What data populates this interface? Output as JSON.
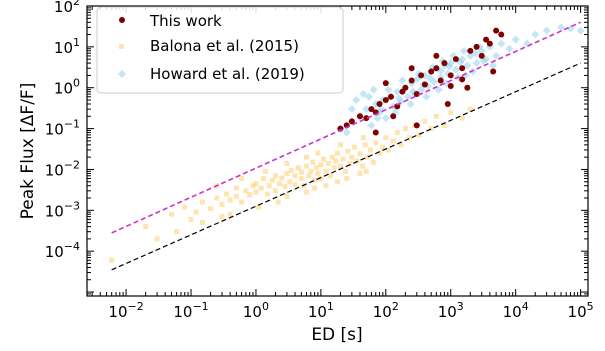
{
  "chart_data": {
    "type": "scatter",
    "xlabel": "ED [s]",
    "ylabel": "Peak Flux [ΔF/F]",
    "xscale": "log",
    "yscale": "log",
    "xlim": [
      0.0025,
      130000
    ],
    "ylim": [
      8e-06,
      100
    ],
    "x_ticks": [
      {
        "value": 0.01,
        "base": "10",
        "exp": "−2"
      },
      {
        "value": 0.1,
        "base": "10",
        "exp": "−1"
      },
      {
        "value": 1,
        "base": "10",
        "exp": "0"
      },
      {
        "value": 10,
        "base": "10",
        "exp": "1"
      },
      {
        "value": 100,
        "base": "10",
        "exp": "2"
      },
      {
        "value": 1000,
        "base": "10",
        "exp": "3"
      },
      {
        "value": 10000,
        "base": "10",
        "exp": "4"
      },
      {
        "value": 100000,
        "base": "10",
        "exp": "5"
      }
    ],
    "y_ticks": [
      {
        "value": 0.0001,
        "base": "10",
        "exp": "−4"
      },
      {
        "value": 0.001,
        "base": "10",
        "exp": "−3"
      },
      {
        "value": 0.01,
        "base": "10",
        "exp": "−2"
      },
      {
        "value": 0.1,
        "base": "10",
        "exp": "−1"
      },
      {
        "value": 1,
        "base": "10",
        "exp": "0"
      },
      {
        "value": 10,
        "base": "10",
        "exp": "1"
      },
      {
        "value": 100,
        "base": "10",
        "exp": "2"
      }
    ],
    "legend_position": "top-left",
    "series": [
      {
        "name": "Balona et al. (2015)",
        "marker": "square",
        "color": "#ffa500",
        "points": [
          [
            0.006,
            6e-05
          ],
          [
            0.02,
            0.0004
          ],
          [
            0.05,
            0.0008
          ],
          [
            0.08,
            0.0012
          ],
          [
            0.12,
            0.0009
          ],
          [
            0.15,
            0.0016
          ],
          [
            0.2,
            0.0011
          ],
          [
            0.25,
            0.002
          ],
          [
            0.3,
            0.0014
          ],
          [
            0.35,
            0.0025
          ],
          [
            0.4,
            0.0018
          ],
          [
            0.5,
            0.0022
          ],
          [
            0.5,
            0.0035
          ],
          [
            0.6,
            0.0016
          ],
          [
            0.7,
            0.003
          ],
          [
            0.8,
            0.0024
          ],
          [
            0.9,
            0.004
          ],
          [
            1,
            0.0028
          ],
          [
            1,
            0.0045
          ],
          [
            1.2,
            0.0035
          ],
          [
            1.3,
            0.006
          ],
          [
            1.5,
            0.0025
          ],
          [
            1.6,
            0.004
          ],
          [
            1.8,
            0.0055
          ],
          [
            2,
            0.003
          ],
          [
            2,
            0.007
          ],
          [
            2.3,
            0.0045
          ],
          [
            2.5,
            0.0062
          ],
          [
            2.8,
            0.0038
          ],
          [
            3,
            0.008
          ],
          [
            3.3,
            0.005
          ],
          [
            3.5,
            0.0095
          ],
          [
            4,
            0.0042
          ],
          [
            4,
            0.007
          ],
          [
            4.5,
            0.011
          ],
          [
            5,
            0.006
          ],
          [
            5,
            0.0085
          ],
          [
            5.5,
            0.004
          ],
          [
            6,
            0.012
          ],
          [
            6.5,
            0.007
          ],
          [
            7,
            0.009
          ],
          [
            7.5,
            0.015
          ],
          [
            8,
            0.0055
          ],
          [
            8.5,
            0.011
          ],
          [
            9,
            0.008
          ],
          [
            10,
            0.013
          ],
          [
            10,
            0.006
          ],
          [
            11,
            0.018
          ],
          [
            12,
            0.009
          ],
          [
            13,
            0.014
          ],
          [
            14,
            0.007
          ],
          [
            15,
            0.02
          ],
          [
            16,
            0.011
          ],
          [
            17,
            0.016
          ],
          [
            18,
            0.025
          ],
          [
            20,
            0.012
          ],
          [
            22,
            0.018
          ],
          [
            24,
            0.009
          ],
          [
            26,
            0.028
          ],
          [
            28,
            0.014
          ],
          [
            30,
            0.02
          ],
          [
            33,
            0.035
          ],
          [
            36,
            0.016
          ],
          [
            40,
            0.024
          ],
          [
            44,
            0.012
          ],
          [
            48,
            0.04
          ],
          [
            52,
            0.02
          ],
          [
            58,
            0.03
          ],
          [
            64,
            0.015
          ],
          [
            70,
            0.045
          ],
          [
            80,
            0.025
          ],
          [
            90,
            0.035
          ],
          [
            100,
            0.06
          ],
          [
            110,
            0.03
          ],
          [
            130,
            0.05
          ],
          [
            150,
            0.08
          ],
          [
            170,
            0.04
          ],
          [
            200,
            0.1
          ],
          [
            230,
            0.06
          ],
          [
            280,
            0.12
          ],
          [
            330,
            0.07
          ],
          [
            400,
            0.15
          ],
          [
            500,
            0.1
          ],
          [
            600,
            0.2
          ],
          [
            800,
            0.12
          ],
          [
            1000,
            0.25
          ],
          [
            1500,
            0.18
          ],
          [
            2000,
            0.3
          ],
          [
            3,
            0.0022
          ],
          [
            1.1,
            0.0012
          ],
          [
            0.4,
            0.0008
          ],
          [
            6,
            0.0028
          ],
          [
            12,
            0.004
          ],
          [
            25,
            0.006
          ],
          [
            50,
            0.009
          ],
          [
            0.1,
            0.0006
          ],
          [
            0.25,
            0.004
          ],
          [
            0.6,
            0.006
          ],
          [
            1.4,
            0.009
          ],
          [
            3,
            0.014
          ],
          [
            6,
            0.02
          ],
          [
            2.2,
            0.0016
          ],
          [
            8,
            0.0035
          ],
          [
            18,
            0.005
          ],
          [
            40,
            0.008
          ],
          [
            9,
            0.025
          ],
          [
            20,
            0.04
          ],
          [
            45,
            0.06
          ],
          [
            0.03,
            0.0002
          ],
          [
            0.06,
            0.0003
          ],
          [
            0.15,
            0.0005
          ],
          [
            0.3,
            0.0007
          ]
        ]
      },
      {
        "name": "Howard et al. (2019)",
        "marker": "diamond",
        "color": "#87ceeb",
        "points": [
          [
            20,
            0.1
          ],
          [
            30,
            0.15
          ],
          [
            40,
            0.2
          ],
          [
            25,
            0.08
          ],
          [
            50,
            0.3
          ],
          [
            60,
            0.12
          ],
          [
            70,
            0.4
          ],
          [
            80,
            0.25
          ],
          [
            90,
            0.5
          ],
          [
            100,
            0.18
          ],
          [
            120,
            0.6
          ],
          [
            130,
            0.35
          ],
          [
            150,
            0.8
          ],
          [
            170,
            0.45
          ],
          [
            200,
            1
          ],
          [
            220,
            0.6
          ],
          [
            250,
            1.3
          ],
          [
            280,
            0.7
          ],
          [
            300,
            1.6
          ],
          [
            350,
            0.9
          ],
          [
            400,
            2
          ],
          [
            450,
            1.1
          ],
          [
            500,
            2.5
          ],
          [
            550,
            1.4
          ],
          [
            600,
            3
          ],
          [
            700,
            1.8
          ],
          [
            800,
            3.5
          ],
          [
            900,
            2.2
          ],
          [
            1000,
            4
          ],
          [
            1200,
            2.8
          ],
          [
            1500,
            5
          ],
          [
            1800,
            3.5
          ],
          [
            2000,
            6
          ],
          [
            2500,
            4
          ],
          [
            3000,
            8
          ],
          [
            3500,
            5
          ],
          [
            4000,
            10
          ],
          [
            5000,
            6
          ],
          [
            6000,
            12
          ],
          [
            8000,
            9
          ],
          [
            10000,
            15
          ],
          [
            15000,
            12
          ],
          [
            20000,
            20
          ],
          [
            30000,
            25
          ],
          [
            50000,
            30
          ],
          [
            70000,
            28
          ],
          [
            100000,
            25
          ],
          [
            35,
            0.5
          ],
          [
            45,
            0.7
          ],
          [
            75,
            0.18
          ],
          [
            110,
            0.9
          ],
          [
            140,
            0.25
          ],
          [
            180,
            1.5
          ],
          [
            240,
            0.4
          ],
          [
            320,
            2.2
          ],
          [
            420,
            0.6
          ],
          [
            520,
            3.2
          ],
          [
            650,
            0.9
          ],
          [
            750,
            4.5
          ],
          [
            850,
            1.3
          ],
          [
            1100,
            6
          ],
          [
            1300,
            1.8
          ],
          [
            1600,
            8
          ],
          [
            2200,
            2.5
          ],
          [
            2800,
            10
          ],
          [
            4500,
            3.5
          ],
          [
            30,
            0.3
          ],
          [
            55,
            0.6
          ],
          [
            65,
            0.9
          ],
          [
            85,
            0.3
          ],
          [
            160,
            0.55
          ],
          [
            260,
            0.8
          ],
          [
            380,
            1.2
          ],
          [
            480,
            1.7
          ],
          [
            700,
            2.6
          ],
          [
            950,
            3.3
          ],
          [
            1400,
            4.2
          ],
          [
            1700,
            2
          ],
          [
            2400,
            7
          ],
          [
            3200,
            4.5
          ]
        ]
      },
      {
        "name": "This work",
        "marker": "circle",
        "color": "#800000",
        "points": [
          [
            20,
            0.1
          ],
          [
            25,
            0.12
          ],
          [
            30,
            0.15
          ],
          [
            40,
            0.2
          ],
          [
            50,
            0.18
          ],
          [
            60,
            0.3
          ],
          [
            70,
            0.25
          ],
          [
            80,
            0.4
          ],
          [
            100,
            0.5
          ],
          [
            100,
            1.3
          ],
          [
            120,
            0.6
          ],
          [
            150,
            0.35
          ],
          [
            180,
            0.8
          ],
          [
            200,
            1
          ],
          [
            250,
            1.5
          ],
          [
            300,
            0.7
          ],
          [
            350,
            2
          ],
          [
            400,
            1.2
          ],
          [
            500,
            2.5
          ],
          [
            600,
            3
          ],
          [
            700,
            1.5
          ],
          [
            800,
            4
          ],
          [
            1000,
            2
          ],
          [
            1200,
            5
          ],
          [
            1500,
            3
          ],
          [
            2000,
            8
          ],
          [
            2500,
            10
          ],
          [
            3000,
            6
          ],
          [
            4000,
            12
          ],
          [
            5000,
            25
          ],
          [
            6000,
            20
          ],
          [
            4500,
            2.5
          ],
          [
            1800,
            1
          ],
          [
            900,
            0.4
          ],
          [
            300,
            0.12
          ],
          [
            130,
            0.2
          ],
          [
            70,
            0.08
          ],
          [
            250,
            3
          ],
          [
            600,
            6
          ],
          [
            1000,
            1.1
          ],
          [
            1500,
            1.6
          ],
          [
            3500,
            15
          ]
        ]
      }
    ],
    "fit_lines": [
      {
        "color": "#cc33cc",
        "style": "dashed",
        "x": [
          0.006,
          100000
        ],
        "y": [
          0.00028,
          40
        ]
      },
      {
        "color": "#000000",
        "style": "dashed",
        "x": [
          0.006,
          100000
        ],
        "y": [
          3.5e-05,
          4
        ]
      }
    ]
  }
}
